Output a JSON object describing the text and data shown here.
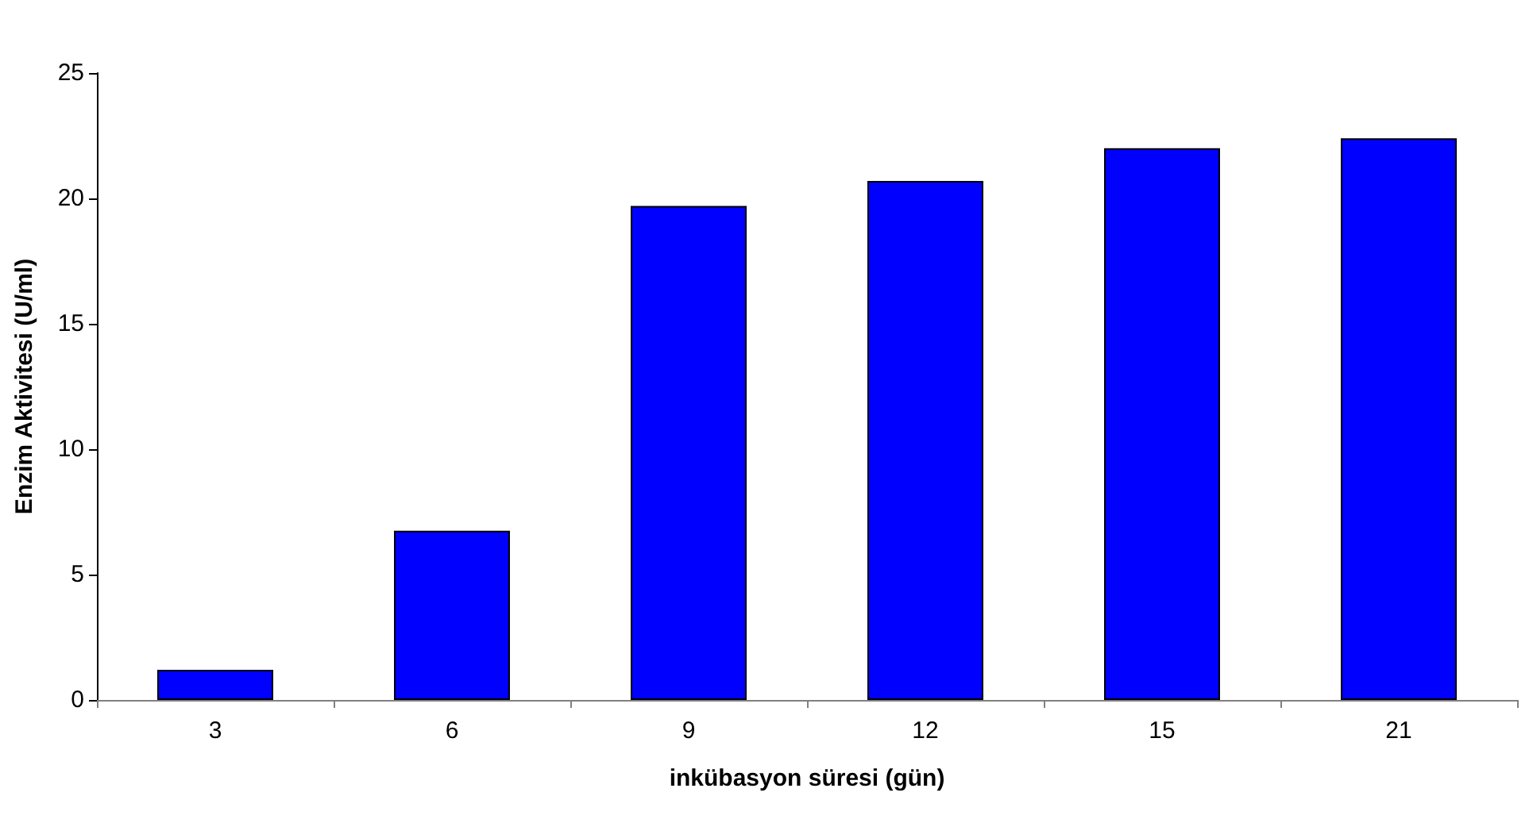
{
  "chart_data": {
    "type": "bar",
    "xlabel": "inkübasyon süresi (gün)",
    "ylabel": "Enzim Aktivitesi (U/ml)",
    "categories": [
      "3",
      "6",
      "9",
      "12",
      "15",
      "21"
    ],
    "values": [
      1.2,
      6.75,
      19.7,
      20.7,
      22.0,
      22.4
    ],
    "color": "#0000ff",
    "ylim": [
      0,
      25
    ],
    "yticks": [
      0,
      5,
      10,
      15,
      20,
      25
    ],
    "grid": false
  }
}
